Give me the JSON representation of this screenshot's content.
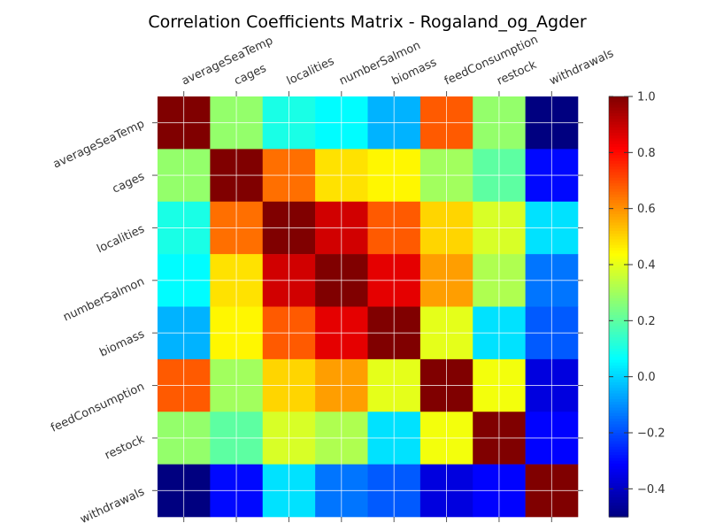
{
  "chart_data": {
    "type": "heatmap",
    "title": "Correlation Coefficients Matrix - Rogaland_og_Agder",
    "variables": [
      "averageSeaTemp",
      "cages",
      "localities",
      "numberSalmon",
      "biomass",
      "feedConsumption",
      "restock",
      "withdrawals"
    ],
    "values": [
      [
        1.0,
        0.28,
        0.1,
        0.06,
        -0.05,
        0.68,
        0.28,
        -0.5
      ],
      [
        0.28,
        1.0,
        0.65,
        0.48,
        0.45,
        0.3,
        0.2,
        -0.3
      ],
      [
        0.1,
        0.65,
        1.0,
        0.88,
        0.68,
        0.5,
        0.38,
        0.02
      ],
      [
        0.06,
        0.48,
        0.88,
        1.0,
        0.85,
        0.58,
        0.32,
        -0.14
      ],
      [
        -0.05,
        0.45,
        0.68,
        0.85,
        1.0,
        0.4,
        0.02,
        -0.18
      ],
      [
        0.68,
        0.3,
        0.5,
        0.58,
        0.4,
        1.0,
        0.42,
        -0.36
      ],
      [
        0.28,
        0.2,
        0.38,
        0.32,
        0.02,
        0.42,
        1.0,
        -0.31
      ],
      [
        -0.5,
        -0.3,
        0.02,
        -0.14,
        -0.18,
        -0.36,
        -0.31,
        1.0
      ]
    ],
    "colorbar": {
      "min": -0.5,
      "max": 1.0,
      "ticks": [
        -0.4,
        -0.2,
        0.0,
        0.2,
        0.4,
        0.6,
        0.8,
        1.0
      ],
      "tick_labels": [
        "−0.4",
        "−0.2",
        "0.0",
        "0.2",
        "0.4",
        "0.6",
        "0.8",
        "1.0"
      ],
      "colormap": "jet"
    },
    "grid": true,
    "xlabel": "",
    "ylabel": ""
  }
}
